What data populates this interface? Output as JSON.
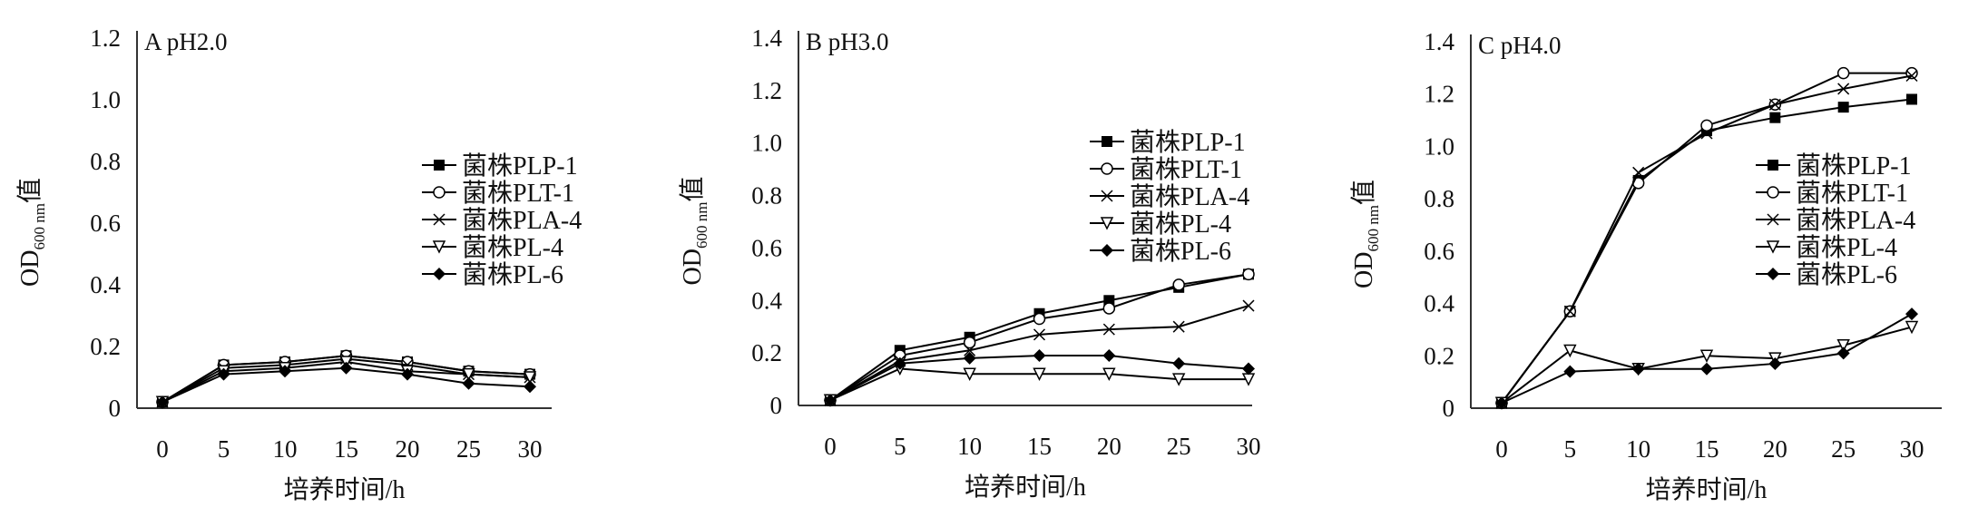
{
  "chart_data": [
    {
      "type": "line",
      "title": "A pH2.0",
      "xlabel": "培养时间/h",
      "ylabel_main": "OD",
      "ylabel_sub": "600 nm",
      "ylabel_suffix": "值",
      "x": [
        0,
        5,
        10,
        15,
        20,
        25,
        30
      ],
      "xticks": [
        "0",
        "5",
        "10",
        "15",
        "20",
        "25",
        "30"
      ],
      "yticks": [
        "0",
        "0.2",
        "0.4",
        "0.6",
        "0.8",
        "1.0",
        "1.2"
      ],
      "ylim": [
        0,
        1.2
      ],
      "grid": false,
      "legend_position": "right",
      "series": [
        {
          "name": "菌株PLP-1",
          "marker": "square-filled",
          "values": [
            0.02,
            0.14,
            0.15,
            0.17,
            0.15,
            0.12,
            0.11
          ]
        },
        {
          "name": "菌株PLT-1",
          "marker": "circle-open",
          "values": [
            0.02,
            0.14,
            0.15,
            0.17,
            0.15,
            0.12,
            0.11
          ]
        },
        {
          "name": "菌株PLA-4",
          "marker": "x",
          "values": [
            0.02,
            0.13,
            0.14,
            0.16,
            0.14,
            0.11,
            0.1
          ]
        },
        {
          "name": "菌株PL-4",
          "marker": "triangle-down-open",
          "values": [
            0.02,
            0.12,
            0.13,
            0.15,
            0.12,
            0.11,
            0.1
          ]
        },
        {
          "name": "菌株PL-6",
          "marker": "diamond-filled",
          "values": [
            0.02,
            0.11,
            0.12,
            0.13,
            0.11,
            0.08,
            0.07
          ]
        }
      ]
    },
    {
      "type": "line",
      "title": "B pH3.0",
      "xlabel": "培养时间/h",
      "ylabel_main": "OD",
      "ylabel_sub": "600 nm",
      "ylabel_suffix": "值",
      "x": [
        0,
        5,
        10,
        15,
        20,
        25,
        30
      ],
      "xticks": [
        "0",
        "5",
        "10",
        "15",
        "20",
        "25",
        "30"
      ],
      "yticks": [
        "0",
        "0.2",
        "0.4",
        "0.6",
        "0.8",
        "1.0",
        "1.2",
        "1.4"
      ],
      "ylim": [
        0,
        1.4
      ],
      "grid": false,
      "legend_position": "right",
      "series": [
        {
          "name": "菌株PLP-1",
          "marker": "square-filled",
          "values": [
            0.02,
            0.21,
            0.26,
            0.35,
            0.4,
            0.45,
            0.5
          ]
        },
        {
          "name": "菌株PLT-1",
          "marker": "circle-open",
          "values": [
            0.02,
            0.19,
            0.24,
            0.33,
            0.37,
            0.46,
            0.5
          ]
        },
        {
          "name": "菌株PLA-4",
          "marker": "x",
          "values": [
            0.02,
            0.17,
            0.21,
            0.27,
            0.29,
            0.3,
            0.38
          ]
        },
        {
          "name": "菌株PL-4",
          "marker": "triangle-down-open",
          "values": [
            0.02,
            0.14,
            0.12,
            0.12,
            0.12,
            0.1,
            0.1
          ]
        },
        {
          "name": "菌株PL-6",
          "marker": "diamond-filled",
          "values": [
            0.02,
            0.16,
            0.18,
            0.19,
            0.19,
            0.16,
            0.14
          ]
        }
      ]
    },
    {
      "type": "line",
      "title": "C pH4.0",
      "xlabel": "培养时间/h",
      "ylabel_main": "OD",
      "ylabel_sub": "600 nm",
      "ylabel_suffix": "值",
      "x": [
        0,
        5,
        10,
        15,
        20,
        25,
        30
      ],
      "xticks": [
        "0",
        "5",
        "10",
        "15",
        "20",
        "25",
        "30"
      ],
      "yticks": [
        "0",
        "0.2",
        "0.4",
        "0.6",
        "0.8",
        "1.0",
        "1.2",
        "1.4"
      ],
      "ylim": [
        0,
        1.4
      ],
      "grid": false,
      "legend_position": "right",
      "series": [
        {
          "name": "菌株PLP-1",
          "marker": "square-filled",
          "values": [
            0.02,
            0.37,
            0.87,
            1.06,
            1.11,
            1.15,
            1.18
          ]
        },
        {
          "name": "菌株PLT-1",
          "marker": "circle-open",
          "values": [
            0.02,
            0.37,
            0.86,
            1.08,
            1.16,
            1.28,
            1.28
          ]
        },
        {
          "name": "菌株PLA-4",
          "marker": "x",
          "values": [
            0.02,
            0.37,
            0.9,
            1.05,
            1.16,
            1.22,
            1.27
          ]
        },
        {
          "name": "菌株PL-4",
          "marker": "triangle-down-open",
          "values": [
            0.02,
            0.22,
            0.15,
            0.2,
            0.19,
            0.24,
            0.31
          ]
        },
        {
          "name": "菌株PL-6",
          "marker": "diamond-filled",
          "values": [
            0.02,
            0.14,
            0.15,
            0.15,
            0.17,
            0.21,
            0.36
          ]
        }
      ]
    }
  ]
}
